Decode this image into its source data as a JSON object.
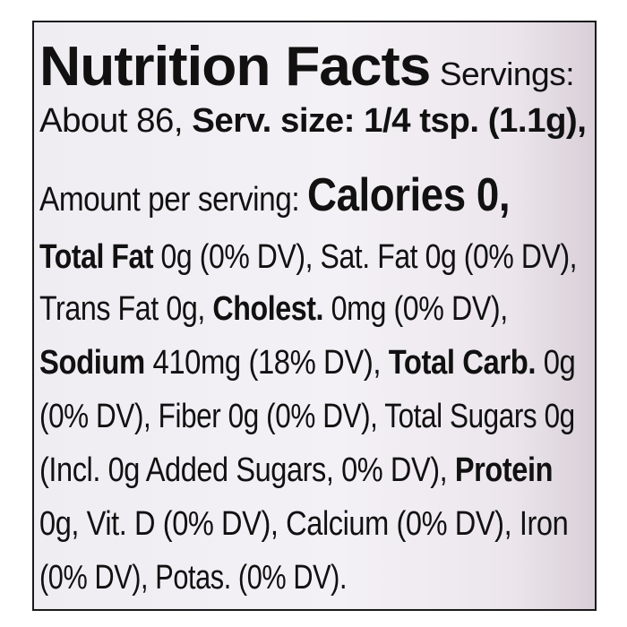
{
  "label": {
    "title": "Nutrition Facts",
    "servings_label": "Servings:",
    "servings_value": "About 86,",
    "serving_size": "Serv. size: 1/4 tsp. (1.1g),",
    "amount_per_serving": "Amount per serving:",
    "calories": "Calories 0,",
    "lines": [
      [
        {
          "b": "Total Fat"
        },
        {
          "t": " 0g (0% DV), Sat. Fat 0g (0% DV),"
        }
      ],
      [
        {
          "t": "Trans Fat 0g, "
        },
        {
          "b": "Cholest."
        },
        {
          "t": " 0mg (0% DV),"
        }
      ],
      [
        {
          "b": "Sodium"
        },
        {
          "t": " 410mg (18% DV), "
        },
        {
          "b": "Total Carb."
        },
        {
          "t": " 0g"
        }
      ],
      [
        {
          "t": "(0% DV), Fiber 0g (0% DV), Total Sugars 0g"
        }
      ],
      [
        {
          "t": "(Incl. 0g Added Sugars, 0% DV), "
        },
        {
          "b": "Protein"
        }
      ],
      [
        {
          "t": "0g, Vit. D (0% DV), Calcium (0% DV), Iron"
        }
      ],
      [
        {
          "t": "(0% DV), Potas. (0% DV)."
        }
      ]
    ]
  },
  "colors": {
    "background": "#f1eff4",
    "text": "#111111",
    "border": "#1a1a1a"
  }
}
